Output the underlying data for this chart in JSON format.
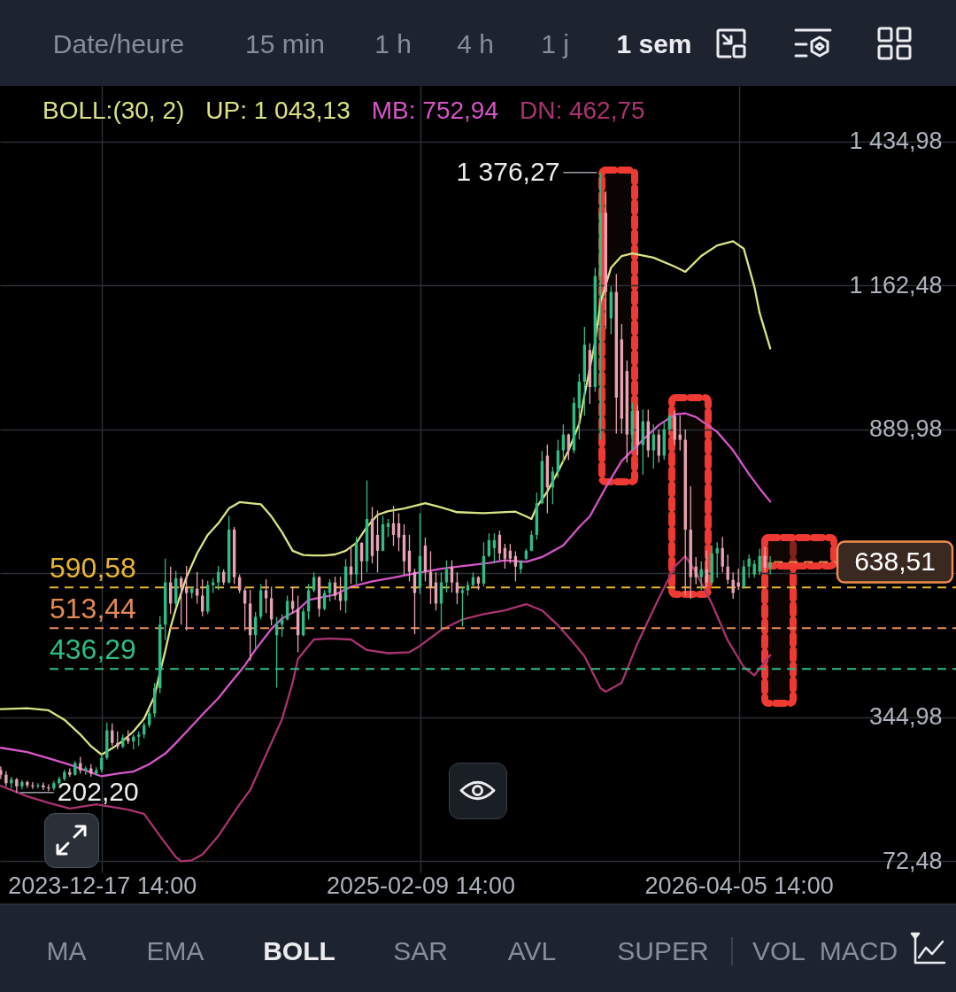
{
  "chart_data": {
    "type": "candlestick",
    "x": [
      "2023-08-06",
      "2023-08-13",
      "2023-08-20",
      "2023-08-27",
      "2023-09-03",
      "2023-09-10",
      "2023-09-17",
      "2023-09-24",
      "2023-10-01",
      "2023-10-08",
      "2023-10-15",
      "2023-10-22",
      "2023-10-29",
      "2023-11-05",
      "2023-11-12",
      "2023-11-19",
      "2023-11-26",
      "2023-12-03",
      "2023-12-10",
      "2023-12-17",
      "2023-12-24",
      "2023-12-31",
      "2024-01-07",
      "2024-01-14",
      "2024-01-21",
      "2024-01-28",
      "2024-02-04",
      "2024-02-11",
      "2024-02-18",
      "2024-02-25",
      "2024-03-03",
      "2024-03-10",
      "2024-03-17",
      "2024-03-24",
      "2024-03-31",
      "2024-04-07",
      "2024-04-14",
      "2024-04-21",
      "2024-04-28",
      "2024-05-05",
      "2024-05-12",
      "2024-05-19",
      "2024-05-26",
      "2024-06-02",
      "2024-06-09",
      "2024-06-16",
      "2024-06-23",
      "2024-06-30",
      "2024-07-07",
      "2024-07-14",
      "2024-07-21",
      "2024-07-28",
      "2024-08-04",
      "2024-08-11",
      "2024-08-18",
      "2024-08-25",
      "2024-09-01",
      "2024-09-08",
      "2024-09-15",
      "2024-09-22",
      "2024-09-29",
      "2024-10-06",
      "2024-10-13",
      "2024-10-20",
      "2024-10-27",
      "2024-11-03",
      "2024-11-10",
      "2024-11-17",
      "2024-11-24",
      "2024-12-01",
      "2024-12-08",
      "2024-12-15",
      "2024-12-22",
      "2024-12-29",
      "2025-01-05",
      "2025-01-12",
      "2025-01-19",
      "2025-01-26",
      "2025-02-02",
      "2025-02-09",
      "2025-02-16",
      "2025-02-23",
      "2025-03-02",
      "2025-03-09",
      "2025-03-16",
      "2025-03-23",
      "2025-03-30",
      "2025-04-06",
      "2025-04-13",
      "2025-04-20",
      "2025-04-27",
      "2025-05-04",
      "2025-05-11",
      "2025-05-18",
      "2025-05-25",
      "2025-06-01",
      "2025-06-08",
      "2025-06-15",
      "2025-06-22",
      "2025-06-29",
      "2025-07-06",
      "2025-07-13",
      "2025-07-20",
      "2025-07-27",
      "2025-08-03",
      "2025-08-10",
      "2025-08-17",
      "2025-08-24",
      "2025-08-31",
      "2025-09-07",
      "2025-09-14",
      "2025-09-21",
      "2025-09-28",
      "2025-10-05",
      "2025-10-12",
      "2025-10-19",
      "2025-10-26",
      "2025-11-02",
      "2025-11-09",
      "2025-11-16",
      "2025-11-23",
      "2025-11-30",
      "2025-12-07",
      "2025-12-14",
      "2025-12-21",
      "2025-12-28",
      "2026-01-04",
      "2026-01-11",
      "2026-01-18",
      "2026-01-25",
      "2026-02-01",
      "2026-02-08",
      "2026-02-15",
      "2026-02-22",
      "2026-03-01",
      "2026-03-08",
      "2026-03-15",
      "2026-03-22",
      "2026-03-29",
      "2026-04-05",
      "2026-04-12",
      "2026-04-19",
      "2026-04-26",
      "2026-05-03",
      "2026-05-10",
      "2026-05-17"
    ],
    "ohlc": [
      [
        245,
        252,
        228,
        236
      ],
      [
        236,
        243,
        214,
        220
      ],
      [
        220,
        232,
        210,
        227
      ],
      [
        227,
        230,
        202.2,
        214
      ],
      [
        214,
        226,
        208,
        222
      ],
      [
        222,
        225,
        211,
        216
      ],
      [
        216,
        222,
        209,
        214
      ],
      [
        214,
        220,
        210,
        216
      ],
      [
        216,
        221,
        207,
        212
      ],
      [
        212,
        218,
        205,
        210
      ],
      [
        210,
        224,
        206,
        220
      ],
      [
        220,
        232,
        216,
        228
      ],
      [
        228,
        245,
        224,
        241
      ],
      [
        241,
        248,
        232,
        236
      ],
      [
        236,
        262,
        234,
        258
      ],
      [
        258,
        270,
        238,
        244
      ],
      [
        244,
        252,
        236,
        248
      ],
      [
        248,
        256,
        232,
        238
      ],
      [
        238,
        250,
        234,
        245
      ],
      [
        245,
        276,
        240,
        268
      ],
      [
        268,
        335,
        265,
        320
      ],
      [
        320,
        333,
        290,
        296
      ],
      [
        296,
        318,
        284,
        289
      ],
      [
        289,
        312,
        286,
        306
      ],
      [
        306,
        320,
        294,
        299
      ],
      [
        299,
        312,
        284,
        308
      ],
      [
        308,
        318,
        290,
        312
      ],
      [
        312,
        335,
        305,
        330
      ],
      [
        330,
        360,
        325,
        352
      ],
      [
        352,
        410,
        345,
        400
      ],
      [
        400,
        536,
        390,
        520
      ],
      [
        520,
        645,
        491,
        600
      ],
      [
        600,
        630,
        540,
        560
      ],
      [
        560,
        622,
        555,
        608
      ],
      [
        608,
        612,
        520,
        590
      ],
      [
        590,
        631,
        509,
        580
      ],
      [
        580,
        592,
        570,
        588
      ],
      [
        588,
        620,
        560,
        575
      ],
      [
        575,
        606,
        536,
        545
      ],
      [
        545,
        603,
        540,
        595
      ],
      [
        595,
        608,
        580,
        600
      ],
      [
        600,
        631,
        586,
        620
      ],
      [
        620,
        625,
        595,
        600
      ],
      [
        600,
        726,
        598,
        700
      ],
      [
        700,
        705,
        597,
        610
      ],
      [
        610,
        615,
        580,
        585
      ],
      [
        585,
        590,
        509,
        560
      ],
      [
        560,
        586,
        452,
        500
      ],
      [
        500,
        544,
        475,
        535
      ],
      [
        535,
        597,
        530,
        585
      ],
      [
        585,
        606,
        542,
        570
      ],
      [
        570,
        592,
        519,
        530
      ],
      [
        500,
        535,
        401,
        520
      ],
      [
        520,
        540,
        497,
        530
      ],
      [
        530,
        575,
        528,
        565
      ],
      [
        565,
        592,
        541,
        550
      ],
      [
        550,
        575,
        468,
        500
      ],
      [
        500,
        552,
        498,
        545
      ],
      [
        545,
        597,
        530,
        585
      ],
      [
        585,
        619,
        581,
        610
      ],
      [
        610,
        612,
        535,
        550
      ],
      [
        550,
        586,
        547,
        580
      ],
      [
        580,
        606,
        564,
        600
      ],
      [
        600,
        611,
        567,
        575
      ],
      [
        580,
        611,
        547,
        565
      ],
      [
        565,
        644,
        542,
        630
      ],
      [
        630,
        669,
        597,
        615
      ],
      [
        615,
        686,
        597,
        675
      ],
      [
        675,
        676,
        602,
        640
      ],
      [
        640,
        793,
        619,
        720
      ],
      [
        720,
        743,
        636,
        650
      ],
      [
        690,
        736,
        619,
        660
      ],
      [
        660,
        726,
        659,
        710
      ],
      [
        705,
        720,
        686,
        712
      ],
      [
        712,
        745,
        669,
        690
      ],
      [
        712,
        731,
        659,
        685
      ],
      [
        690,
        710,
        614,
        640
      ],
      [
        660,
        690,
        602,
        620
      ],
      [
        620,
        626,
        502,
        580
      ],
      [
        590,
        731,
        578,
        650
      ],
      [
        670,
        685,
        602,
        620
      ],
      [
        620,
        659,
        559,
        590
      ],
      [
        600,
        619,
        547,
        560
      ],
      [
        560,
        619,
        510,
        600
      ],
      [
        600,
        642,
        581,
        625
      ],
      [
        630,
        642,
        581,
        600
      ],
      [
        600,
        619,
        559,
        580
      ],
      [
        580,
        592,
        517,
        585
      ],
      [
        585,
        602,
        575,
        595
      ],
      [
        595,
        619,
        592,
        610
      ],
      [
        610,
        612,
        586,
        598
      ],
      [
        598,
        676,
        592,
        650
      ],
      [
        650,
        693,
        648,
        680
      ],
      [
        665,
        693,
        636,
        680
      ],
      [
        690,
        698,
        642,
        655
      ],
      [
        665,
        673,
        626,
        645
      ],
      [
        660,
        673,
        636,
        645
      ],
      [
        650,
        659,
        602,
        630
      ],
      [
        625,
        642,
        617,
        640
      ],
      [
        645,
        664,
        642,
        660
      ],
      [
        660,
        698,
        659,
        690
      ],
      [
        690,
        770,
        681,
        750
      ],
      [
        750,
        849,
        748,
        830
      ],
      [
        840,
        861,
        731,
        780
      ],
      [
        780,
        819,
        748,
        810
      ],
      [
        810,
        870,
        798,
        850
      ],
      [
        850,
        899,
        827,
        880
      ],
      [
        880,
        882,
        832,
        850
      ],
      [
        850,
        950,
        844,
        940
      ],
      [
        930,
        995,
        871,
        980
      ],
      [
        980,
        1084,
        916,
        1050
      ],
      [
        1040,
        1053,
        938,
        970
      ],
      [
        970,
        1196,
        961,
        1180
      ],
      [
        1180,
        1376.27,
        870,
        1300
      ],
      [
        1300,
        1340,
        1080,
        1150
      ],
      [
        1100,
        1160,
        1070,
        1150
      ],
      [
        1150,
        1184,
        882,
        950
      ],
      [
        1060,
        1089,
        882,
        910
      ],
      [
        1000,
        1020,
        827,
        880
      ],
      [
        880,
        940,
        850,
        925
      ],
      [
        925,
        935,
        840,
        860
      ],
      [
        860,
        927,
        804,
        905
      ],
      [
        905,
        927,
        837,
        850
      ],
      [
        850,
        899,
        815,
        880
      ],
      [
        880,
        890,
        827,
        840
      ],
      [
        840,
        904,
        832,
        890
      ],
      [
        890,
        921,
        880,
        915
      ],
      [
        915,
        925,
        860,
        870
      ],
      [
        880,
        916,
        850,
        870
      ],
      [
        870,
        890,
        575,
        700
      ],
      [
        700,
        782,
        569,
        610
      ],
      [
        630,
        648,
        597,
        610
      ],
      [
        610,
        640,
        585,
        625
      ],
      [
        625,
        660,
        590,
        600
      ],
      [
        600,
        670,
        595,
        655
      ],
      [
        655,
        676,
        609,
        665
      ],
      [
        665,
        686,
        619,
        630
      ],
      [
        630,
        653,
        597,
        605
      ],
      [
        605,
        619,
        569,
        580
      ],
      [
        600,
        626,
        586,
        592
      ],
      [
        592,
        642,
        588,
        630
      ],
      [
        630,
        653,
        609,
        645
      ],
      [
        615,
        642,
        609,
        635
      ],
      [
        620,
        664,
        614,
        650
      ],
      [
        650,
        668,
        620,
        628
      ],
      [
        628,
        650,
        615,
        638.51
      ]
    ],
    "colors": [
      "#e8a2b4",
      "#e8a2b4",
      "#2ebd85",
      "#e8a2b4",
      "#2ebd85",
      "#e8a2b4",
      "#e8a2b4",
      "#2ebd85",
      "#e8a2b4",
      "#e8a2b4",
      "#2ebd85",
      "#2ebd85",
      "#2ebd85",
      "#e8a2b4",
      "#2ebd85",
      "#e8a2b4",
      "#2ebd85",
      "#e8a2b4",
      "#2ebd85",
      "#2ebd85",
      "#2ebd85",
      "#e8a2b4",
      "#e8a2b4",
      "#2ebd85",
      "#e8a2b4",
      "#2ebd85",
      "#2ebd85",
      "#2ebd85",
      "#2ebd85",
      "#2ebd85",
      "#2ebd85",
      "#2ebd85",
      "#e8a2b4",
      "#2ebd85",
      "#e8a2b4",
      "#e8a2b4",
      "#2ebd85",
      "#e8a2b4",
      "#e8a2b4",
      "#2ebd85",
      "#2ebd85",
      "#2ebd85",
      "#e8a2b4",
      "#2ebd85",
      "#e8a2b4",
      "#e8a2b4",
      "#e8a2b4",
      "#e8a2b4",
      "#2ebd85",
      "#2ebd85",
      "#e8a2b4",
      "#e8a2b4",
      "#2ebd85",
      "#2ebd85",
      "#2ebd85",
      "#e8a2b4",
      "#e8a2b4",
      "#2ebd85",
      "#2ebd85",
      "#2ebd85",
      "#e8a2b4",
      "#2ebd85",
      "#2ebd85",
      "#e8a2b4",
      "#e8a2b4",
      "#2ebd85",
      "#e8a2b4",
      "#2ebd85",
      "#e8a2b4",
      "#2ebd85",
      "#e8a2b4",
      "#e8a2b4",
      "#2ebd85",
      "#2ebd85",
      "#e8a2b4",
      "#e8a2b4",
      "#e8a2b4",
      "#e8a2b4",
      "#e8a2b4",
      "#2ebd85",
      "#e8a2b4",
      "#e8a2b4",
      "#e8a2b4",
      "#2ebd85",
      "#2ebd85",
      "#e8a2b4",
      "#e8a2b4",
      "#2ebd85",
      "#2ebd85",
      "#2ebd85",
      "#e8a2b4",
      "#2ebd85",
      "#2ebd85",
      "#2ebd85",
      "#e8a2b4",
      "#e8a2b4",
      "#e8a2b4",
      "#e8a2b4",
      "#2ebd85",
      "#2ebd85",
      "#2ebd85",
      "#2ebd85",
      "#2ebd85",
      "#e8a2b4",
      "#2ebd85",
      "#2ebd85",
      "#2ebd85",
      "#e8a2b4",
      "#2ebd85",
      "#2ebd85",
      "#2ebd85",
      "#e8a2b4",
      "#2ebd85",
      "#2ebd85",
      "#e8a2b4",
      "#2ebd85",
      "#e8a2b4",
      "#e8a2b4",
      "#e8a2b4",
      "#2ebd85",
      "#e8a2b4",
      "#2ebd85",
      "#e8a2b4",
      "#2ebd85",
      "#e8a2b4",
      "#2ebd85",
      "#2ebd85",
      "#e8a2b4",
      "#e8a2b4",
      "#e8a2b4",
      "#e8a2b4",
      "#e8a2b4",
      "#2ebd85",
      "#e8a2b4",
      "#2ebd85",
      "#2ebd85",
      "#e8a2b4",
      "#e8a2b4",
      "#e8a2b4",
      "#e8a2b4",
      "#2ebd85",
      "#2ebd85",
      "#2ebd85",
      "#2ebd85",
      "#e8a2b4",
      "#2ebd85"
    ],
    "series": [
      {
        "name": "UP: 1 043,13",
        "type": "line",
        "color": "#d9e383",
        "x": [
          "2023-08-06",
          "2023-09-10",
          "2023-10-08",
          "2023-10-29",
          "2023-11-19",
          "2023-12-03",
          "2023-12-17",
          "2023-12-31",
          "2024-01-14",
          "2024-01-28",
          "2024-02-11",
          "2024-02-25",
          "2024-03-03",
          "2024-03-10",
          "2024-03-17",
          "2024-03-24",
          "2024-04-07",
          "2024-04-21",
          "2024-05-05",
          "2024-05-19",
          "2024-06-02",
          "2024-06-16",
          "2024-06-30",
          "2024-07-14",
          "2024-07-28",
          "2024-08-11",
          "2024-08-25",
          "2024-09-08",
          "2024-09-22",
          "2024-10-06",
          "2024-10-20",
          "2024-11-03",
          "2024-11-17",
          "2024-12-01",
          "2024-12-15",
          "2024-12-29",
          "2025-01-19",
          "2025-02-16",
          "2025-03-09",
          "2025-03-30",
          "2025-05-04",
          "2025-06-15",
          "2025-06-29",
          "2025-07-06",
          "2025-07-13",
          "2025-07-27",
          "2025-08-10",
          "2025-08-24",
          "2025-09-07",
          "2025-09-14",
          "2025-09-28",
          "2025-10-05",
          "2025-10-19",
          "2025-11-02",
          "2025-11-16",
          "2025-12-14",
          "2026-01-11",
          "2026-01-25",
          "2026-02-15",
          "2026-03-08",
          "2026-03-29",
          "2026-04-12",
          "2026-04-26",
          "2026-05-03",
          "2026-05-17"
        ],
        "values": [
          360,
          362,
          358,
          340,
          312,
          290,
          274,
          286,
          300,
          318,
          342,
          385,
          430,
          470,
          515,
          550,
          610,
          655,
          690,
          712,
          740,
          752,
          750,
          748,
          725,
          695,
          660,
          652,
          651,
          651,
          653,
          660,
          675,
          705,
          728,
          735,
          740,
          750,
          742,
          733,
          731,
          734,
          725,
          720,
          743,
          772,
          810,
          850,
          900,
          955,
          1055,
          1130,
          1196,
          1218,
          1223,
          1215,
          1198,
          1188,
          1218,
          1238,
          1246,
          1232,
          1160,
          1110,
          1043.13
        ]
      },
      {
        "name": "MB: 752,94",
        "type": "line",
        "color": "#d656c8",
        "x": [
          "2023-08-06",
          "2023-09-10",
          "2023-10-08",
          "2023-11-05",
          "2023-12-17",
          "2024-01-07",
          "2024-01-28",
          "2024-02-18",
          "2024-03-10",
          "2024-03-24",
          "2024-04-14",
          "2024-04-28",
          "2024-05-19",
          "2024-06-02",
          "2024-06-23",
          "2024-07-07",
          "2024-07-28",
          "2024-08-11",
          "2024-09-01",
          "2024-09-15",
          "2024-10-20",
          "2024-11-10",
          "2024-12-08",
          "2025-01-05",
          "2025-02-02",
          "2025-03-09",
          "2025-04-06",
          "2025-05-11",
          "2025-06-01",
          "2025-06-29",
          "2025-07-20",
          "2025-08-17",
          "2025-09-07",
          "2025-09-21",
          "2025-10-12",
          "2025-11-02",
          "2025-11-30",
          "2025-12-21",
          "2026-01-11",
          "2026-01-25",
          "2026-02-08",
          "2026-03-08",
          "2026-03-29",
          "2026-04-19",
          "2026-05-03",
          "2026-05-17"
        ],
        "values": [
          287,
          279,
          267,
          255,
          233,
          238,
          242,
          256,
          276,
          296,
          328,
          350,
          381,
          406,
          443,
          473,
          512,
          532,
          548,
          567,
          577,
          592,
          602,
          609,
          617,
          626,
          631,
          637,
          642,
          639,
          648,
          670,
          705,
          725,
          780,
          830,
          870,
          898,
          918,
          920,
          913,
          885,
          850,
          805,
          778,
          752.94
        ]
      },
      {
        "name": "DN: 462,75",
        "type": "line",
        "color": "#a8346f",
        "x": [
          "2023-08-06",
          "2023-09-10",
          "2023-10-08",
          "2023-11-05",
          "2023-12-10",
          "2024-01-21",
          "2024-02-11",
          "2024-03-03",
          "2024-03-24",
          "2024-03-31",
          "2024-04-14",
          "2024-04-28",
          "2024-05-19",
          "2024-06-02",
          "2024-06-16",
          "2024-06-30",
          "2024-07-21",
          "2024-08-11",
          "2024-08-25",
          "2024-09-01",
          "2024-09-15",
          "2024-09-22",
          "2024-10-13",
          "2024-11-10",
          "2024-12-01",
          "2024-12-29",
          "2025-01-26",
          "2025-02-09",
          "2025-03-09",
          "2025-04-06",
          "2025-05-04",
          "2025-06-01",
          "2025-06-29",
          "2025-07-20",
          "2025-08-10",
          "2025-08-31",
          "2025-09-14",
          "2025-10-05",
          "2025-10-12",
          "2025-11-02",
          "2025-11-23",
          "2025-12-21",
          "2026-01-11",
          "2026-01-25",
          "2026-02-08",
          "2026-03-01",
          "2026-03-22",
          "2026-04-12",
          "2026-04-26",
          "2026-05-17"
        ],
        "values": [
          215,
          195,
          183,
          172,
          180,
          170,
          162,
          120,
          80,
          72,
          74,
          85,
          120,
          150,
          180,
          207,
          274,
          341,
          410,
          455,
          480,
          492,
          494,
          492,
          472,
          466,
          468,
          480,
          510,
          530,
          540,
          547,
          559,
          547,
          519,
          485,
          460,
          400,
          393,
          410,
          485,
          570,
          630,
          650,
          619,
          560,
          490,
          440,
          424,
          462.75
        ]
      }
    ],
    "xlim": [
      "2023-08-05",
      "2027-01-17"
    ],
    "ylim": [
      51,
      1540
    ],
    "xticks": [
      {
        "value": "2023-12-17T14:00",
        "label": "2023-12-17 14:00"
      },
      {
        "value": "2025-02-09T14:00",
        "label": "2025-02-09 14:00"
      },
      {
        "value": "2026-04-05T14:00",
        "label": "2026-04-05 14:00"
      }
    ],
    "yticks": [
      {
        "value": 1434.98,
        "label": "1 434,98"
      },
      {
        "value": 1162.48,
        "label": "1 162,48"
      },
      {
        "value": 889.98,
        "label": "889,98"
      },
      {
        "value": 617.48,
        "label": null
      },
      {
        "value": 344.98,
        "label": "344,98"
      },
      {
        "value": 72.48,
        "label": "72,48"
      }
    ],
    "grid": true,
    "legend": "top left",
    "legend_title": "BOLL:(30, 2)",
    "ref_lines": [
      {
        "axis": "y",
        "value": 590.58,
        "label": "590,58",
        "color": "#e9b530",
        "line_style": "dashed"
      },
      {
        "axis": "y",
        "value": 513.44,
        "label": "513,44",
        "color": "#e58a55",
        "line_style": "dashed"
      },
      {
        "axis": "y",
        "value": 436.29,
        "label": "436,29",
        "color": "#2ebd85",
        "line_style": "dashed"
      },
      {
        "axis": "y",
        "value": 638.51,
        "label": "638,51",
        "color": "#ef8a50",
        "line_style": "dashed"
      }
    ],
    "annotations": [
      "Date/heure",
      "15 min",
      "1 h",
      "4 h",
      "1 j",
      "1 sem",
      "MA",
      "EMA",
      "BOLL",
      "SAR",
      "AVL",
      "SUPER",
      "VOL",
      "MACD",
      {
        "text": "1 376,27",
        "x": "2025-10-05",
        "y": 1376.27
      },
      {
        "text": "202,20",
        "x": "2023-08-27",
        "y": 202.2
      }
    ]
  }
}
